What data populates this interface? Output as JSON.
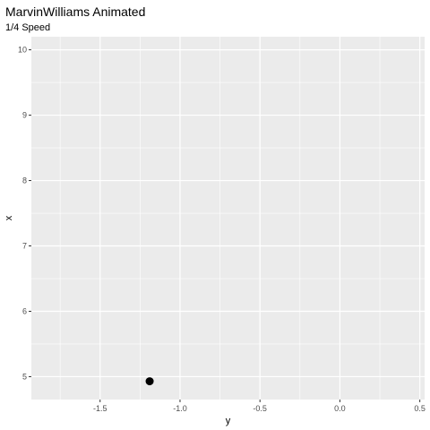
{
  "chart_data": {
    "type": "scatter",
    "title": "MarvinWilliams Animated",
    "subtitle": "1/4 Speed",
    "xlabel": "y",
    "ylabel": "x",
    "xlim": [
      -1.93,
      0.53
    ],
    "ylim": [
      4.65,
      10.2
    ],
    "xticks": [
      -1.5,
      -1.0,
      -0.5,
      0.0,
      0.5
    ],
    "xtick_labels": [
      "-1.5",
      "-1.0",
      "-0.5",
      "0.0",
      "0.5"
    ],
    "yticks": [
      5,
      6,
      7,
      8,
      9,
      10
    ],
    "ytick_labels": [
      "5",
      "6",
      "7",
      "8",
      "9",
      "10"
    ],
    "grid": true,
    "legend": "none",
    "points": [
      {
        "x": -1.19,
        "y": 4.93
      }
    ],
    "colors": {
      "panel": "#ebebeb",
      "grid": "#ffffff",
      "point": "#000000"
    }
  }
}
